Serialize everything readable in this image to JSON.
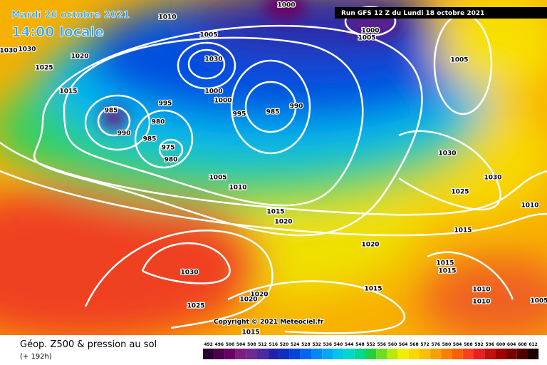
{
  "header": {
    "date": "Mardi 26 octobre 2021",
    "time": "14:00 locale",
    "run": "Run GFS 12 Z du Lundi 18 octobre 2021"
  },
  "footer": {
    "title": "Géop. Z500 & pression au sol",
    "lead": "(+ 192h)",
    "copyright": "Copyright © 2021 Meteociel.fr"
  },
  "map": {
    "isobar_labels": [
      "1010",
      "1000",
      "1000",
      "1005",
      "1030",
      "1030",
      "1020",
      "1025",
      "1015",
      "1005",
      "1030",
      "1000",
      "1000",
      "995",
      "985",
      "990",
      "980",
      "985",
      "975",
      "980",
      "995",
      "985",
      "990",
      "1005",
      "1030",
      "1030",
      "1025",
      "1010",
      "1005",
      "1010",
      "1015",
      "1020",
      "1020",
      "1015",
      "1015",
      "1015",
      "1015",
      "1010",
      "1010",
      "1005",
      "1030",
      "1025",
      "1020",
      "1020",
      "1015"
    ]
  },
  "colorbar": {
    "levels": [
      492,
      496,
      500,
      504,
      508,
      512,
      516,
      520,
      524,
      528,
      532,
      536,
      540,
      544,
      548,
      552,
      556,
      560,
      564,
      568,
      572,
      576,
      580,
      584,
      588,
      592,
      596,
      600,
      604,
      608,
      612
    ],
    "colors": [
      "#2a0030",
      "#4b0049",
      "#6a0066",
      "#7e1f80",
      "#6e2a92",
      "#4b2aa0",
      "#2222a8",
      "#0e2fc0",
      "#0044d8",
      "#0066ee",
      "#0088f4",
      "#00a8f4",
      "#00c4e8",
      "#00d8c8",
      "#00d890",
      "#20d040",
      "#70dc20",
      "#b8e810",
      "#f0f000",
      "#f8d800",
      "#f8c000",
      "#f8a000",
      "#f88000",
      "#f86000",
      "#f84020",
      "#e82020",
      "#c01010",
      "#a00000",
      "#780000",
      "#500000",
      "#200000"
    ]
  }
}
